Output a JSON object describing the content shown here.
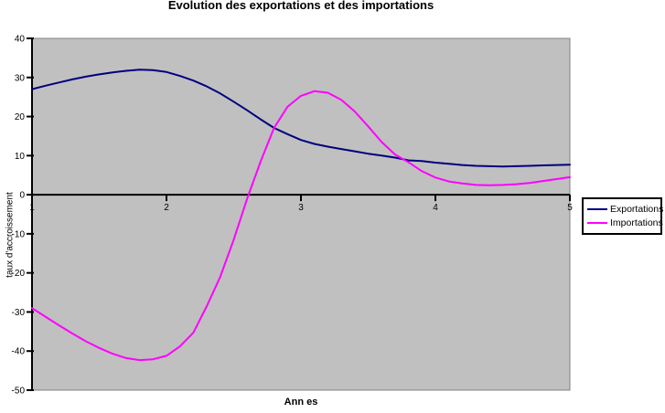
{
  "title": "Evolution des exportations et des importations",
  "colors": {
    "exportations": "#000080",
    "importations": "#ff00ff",
    "plot_background": "#c0c0c0",
    "axis": "#000000",
    "plot_border": "#848284"
  },
  "legend": {
    "entries": [
      {
        "label": "Exportations",
        "color": "#000080"
      },
      {
        "label": "Importations",
        "color": "#ff00ff"
      }
    ]
  },
  "chart_data": {
    "type": "line",
    "title": "Evolution des exportations et des importations",
    "xlabel": "Ann es",
    "ylabel": "taux d'accroissement",
    "xlim": [
      1,
      5
    ],
    "ylim": [
      -50,
      40
    ],
    "x_ticks": [
      1,
      2,
      3,
      4,
      5
    ],
    "y_ticks": [
      40,
      30,
      20,
      10,
      0,
      -10,
      -20,
      -30,
      -40,
      -50
    ],
    "grid": false,
    "plot_background": "#c0c0c0",
    "legend_position": "right",
    "x": [
      1.0,
      1.1,
      1.2,
      1.3,
      1.4,
      1.5,
      1.6,
      1.7,
      1.8,
      1.9,
      2.0,
      2.1,
      2.2,
      2.3,
      2.4,
      2.5,
      2.6,
      2.7,
      2.8,
      2.9,
      3.0,
      3.1,
      3.2,
      3.3,
      3.4,
      3.5,
      3.6,
      3.7,
      3.8,
      3.9,
      4.0,
      4.1,
      4.2,
      4.3,
      4.4,
      4.5,
      4.6,
      4.7,
      4.8,
      4.9,
      5.0
    ],
    "series": [
      {
        "name": "Exportations",
        "color": "#000080",
        "values": [
          27.0,
          27.9,
          28.7,
          29.5,
          30.2,
          30.8,
          31.3,
          31.7,
          32.0,
          31.9,
          31.4,
          30.4,
          29.2,
          27.7,
          25.9,
          23.8,
          21.6,
          19.3,
          17.1,
          15.5,
          14.0,
          13.0,
          12.3,
          11.7,
          11.1,
          10.5,
          10.0,
          9.5,
          8.8,
          8.6,
          8.2,
          7.9,
          7.6,
          7.4,
          7.3,
          7.2,
          7.3,
          7.4,
          7.5,
          7.6,
          7.7
        ]
      },
      {
        "name": "Importations",
        "color": "#ff00ff",
        "values": [
          -29.0,
          -31.2,
          -33.4,
          -35.5,
          -37.5,
          -39.2,
          -40.7,
          -41.8,
          -42.3,
          -42.1,
          -41.2,
          -38.8,
          -35.3,
          -28.5,
          -21.0,
          -11.5,
          -1.0,
          8.5,
          17.1,
          22.5,
          25.3,
          26.5,
          26.1,
          24.3,
          21.3,
          17.5,
          13.5,
          10.3,
          8.3,
          6.0,
          4.4,
          3.4,
          2.9,
          2.5,
          2.4,
          2.5,
          2.7,
          3.0,
          3.5,
          4.0,
          4.5
        ]
      }
    ]
  }
}
